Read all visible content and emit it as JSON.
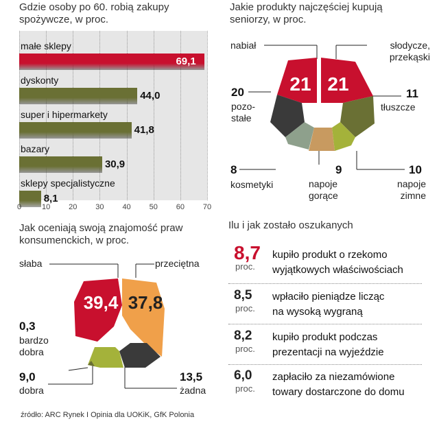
{
  "colors": {
    "accent": "#c8102e",
    "olive": "#6a7034",
    "olive_light": "#a4b23a",
    "dark": "#3a3a3a",
    "orange": "#f0a04a",
    "tan": "#c89a60",
    "grey_green": "#8ea08c"
  },
  "chart_data": [
    {
      "type": "bar",
      "title": "Gdzie osoby po 60. robią zakupy spożywcze, w proc.",
      "categories": [
        "małe sklepy",
        "dyskonty",
        "super i hipermarkety",
        "bazary",
        "sklepy specjalistyczne"
      ],
      "values": [
        69.1,
        44.0,
        41.8,
        30.9,
        8.1
      ],
      "value_labels": [
        "69,1",
        "44,0",
        "41,8",
        "30,9",
        "8,1"
      ],
      "xlim": [
        0,
        70
      ],
      "ticks": [
        "0",
        "10",
        "20",
        "30",
        "40",
        "50",
        "60",
        "70"
      ]
    },
    {
      "type": "pie",
      "title": "Jakie produkty najczęściej kupują seniorzy, w proc.",
      "categories": [
        "nabiał",
        "słodycze, przekąski",
        "tłuszcze",
        "napoje zimne",
        "napoje gorące",
        "kosmetyki",
        "pozostałe"
      ],
      "values": [
        21,
        21,
        11,
        10,
        9,
        8,
        20
      ]
    },
    {
      "type": "pie",
      "title": "Jak oceniają swoją znajomość praw konsumenckich, w proc.",
      "categories": [
        "słaba",
        "przeciętna",
        "żadna",
        "dobra",
        "bardzo dobra"
      ],
      "values": [
        39.4,
        37.8,
        13.5,
        9.0,
        0.3
      ]
    },
    {
      "type": "table",
      "title": "Ilu i jak zostało oszukanych",
      "rows": [
        {
          "value": "8,7",
          "unit": "proc.",
          "text": "kupiło produkt o rzekomo\nwyjątkowych właściwościach"
        },
        {
          "value": "8,5",
          "unit": "proc.",
          "text": "wpłaciło  pieniądze licząc\nna wysoką wygraną"
        },
        {
          "value": "8,2",
          "unit": "proc.",
          "text": "kupiło produkt podczas\nprezentacji na wyjeździe"
        },
        {
          "value": "6,0",
          "unit": "proc.",
          "text": "zapłaciło za niezamówione\ntowary dostarczone do domu"
        }
      ]
    }
  ],
  "panel2": {
    "labels": {
      "nabial": "nabiał",
      "slodycze": "słodycze,\nprzekąski",
      "pozostale_num": "20",
      "pozostale": "pozo-\nstałe",
      "tluszcze_num": "11",
      "tluszcze": "tłuszcze",
      "kosmetyki_num": "8",
      "kosmetyki": "kosmetyki",
      "goracy_num": "9",
      "gorace": "napoje\ngorące",
      "zimne_num": "10",
      "zimne": "napoje\nzimne",
      "big_left": "21",
      "big_right": "21"
    }
  },
  "panel3": {
    "labels": {
      "slaba": "słaba",
      "przecietna": "przeciętna",
      "big_left": "39,4",
      "big_right": "37,8",
      "bdobra_num": "0,3",
      "bdobra": "bardzo\ndobra",
      "dobra_num": "9,0",
      "dobra": "dobra",
      "zadna_num": "13,5",
      "zadna": "żadna"
    }
  },
  "source": "źródło: ARC Rynek I Opinia dla UOKiK, GfK Polonia"
}
